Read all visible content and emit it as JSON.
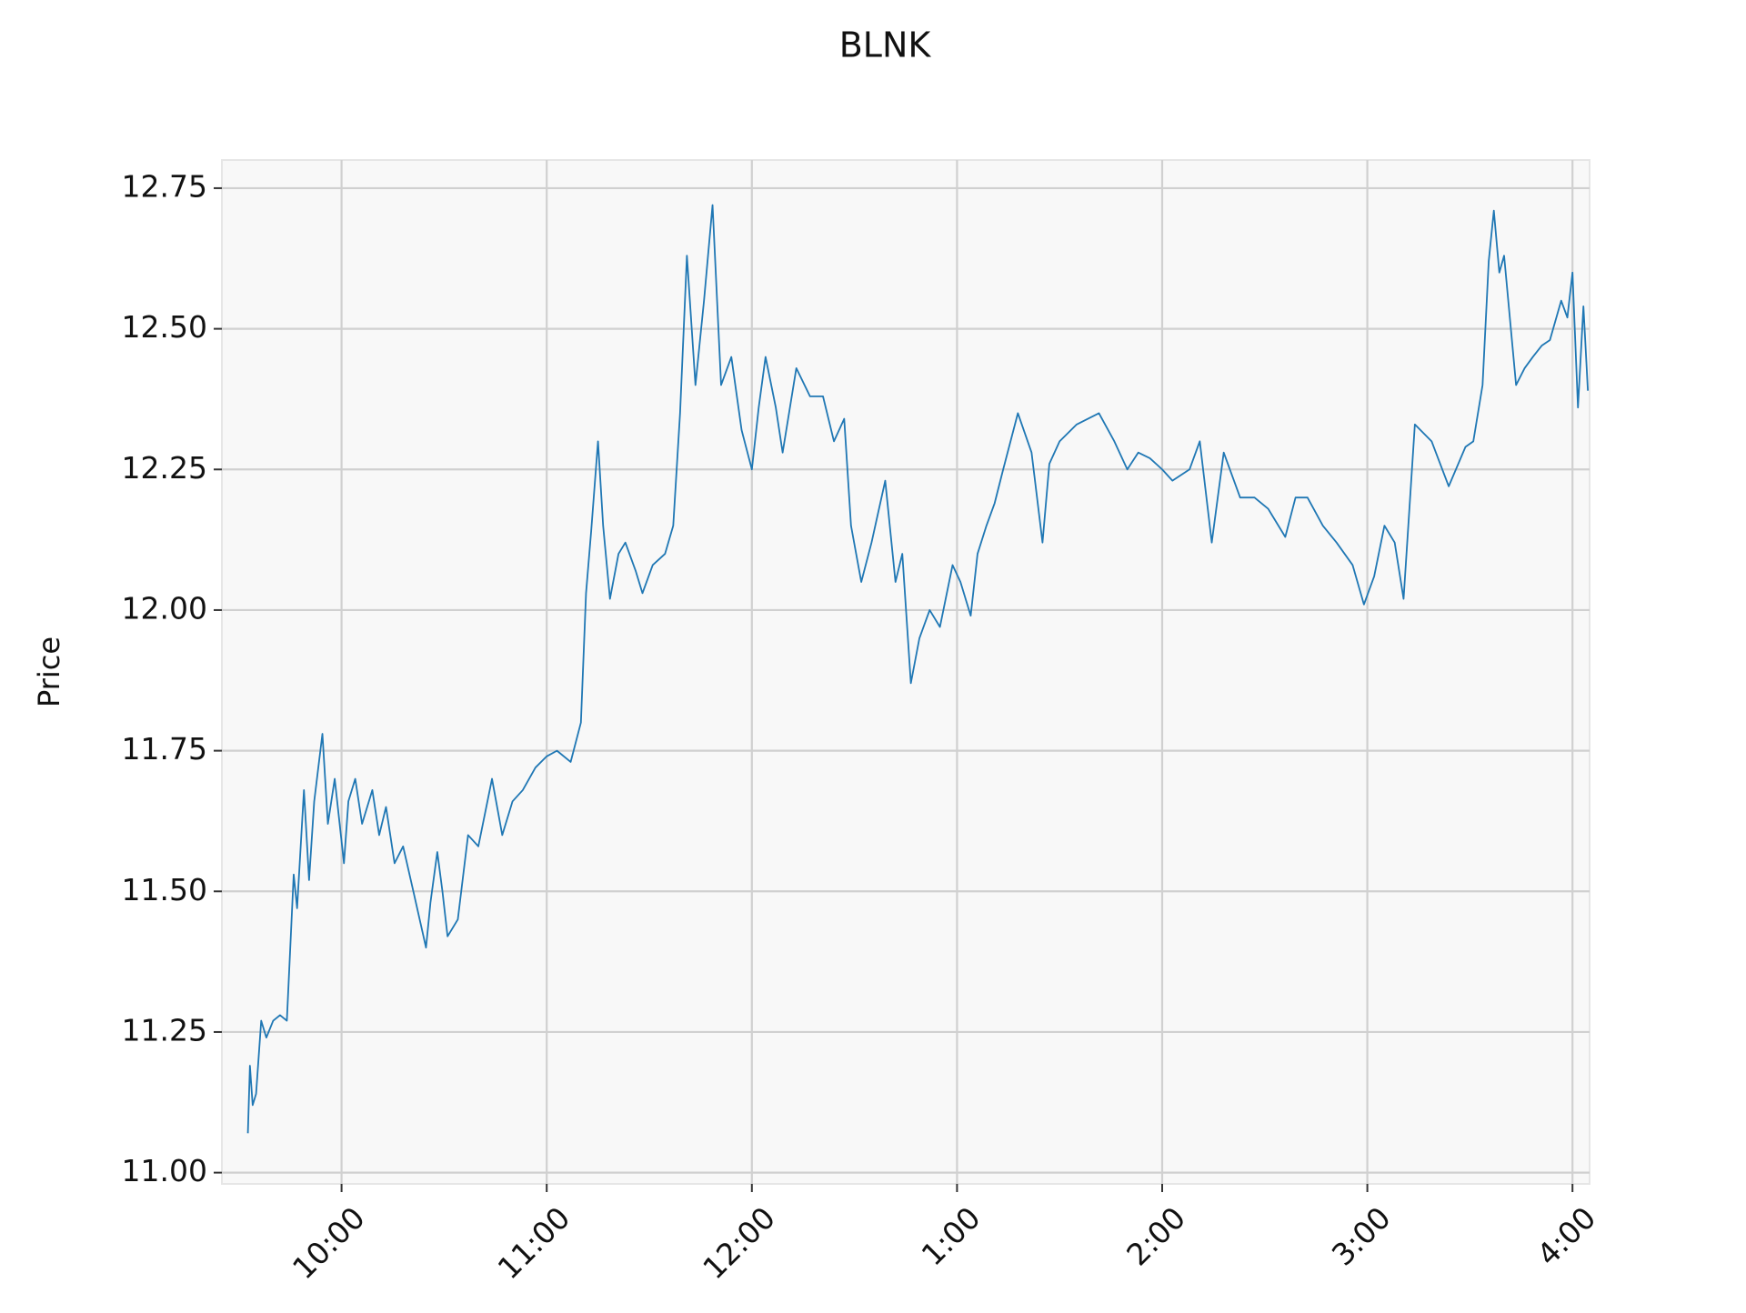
{
  "chart_data": {
    "type": "line",
    "title": "BLNK",
    "ylabel": "Price",
    "color": "#1f77b4",
    "grid": true,
    "x": [
      572.6,
      573.2,
      574,
      575,
      576.5,
      578,
      580,
      582,
      584,
      586,
      587,
      589,
      590.5,
      592,
      594.4,
      596,
      598,
      600.7,
      602,
      604,
      606,
      609,
      611,
      613,
      615.5,
      618,
      621,
      624.7,
      626,
      628,
      629.5,
      631,
      634,
      637,
      640,
      644,
      647,
      650,
      653,
      656.7,
      660,
      663,
      667,
      670,
      671.5,
      673,
      675,
      676.5,
      678.5,
      681,
      683,
      686,
      688,
      691,
      694.6,
      697,
      699,
      701,
      703.5,
      706,
      708.5,
      711,
      714,
      717,
      720,
      722,
      724,
      727,
      729,
      733,
      737,
      740.8,
      744,
      747,
      749,
      752,
      755,
      759,
      762,
      764,
      766.5,
      769,
      772,
      775,
      778.7,
      781,
      784,
      786,
      788.6,
      791,
      793.5,
      797.8,
      801.8,
      805,
      807,
      810,
      815,
      821.5,
      826,
      829.8,
      833,
      836.4,
      840,
      843,
      848,
      851,
      854.5,
      858,
      862.8,
      867,
      871,
      876,
      879,
      882.5,
      887,
      891,
      895.7,
      899,
      902,
      905,
      908,
      910.6,
      913.9,
      918.8,
      923.8,
      928.7,
      931,
      933.7,
      935.5,
      937,
      938.6,
      940,
      943.5,
      946,
      948.4,
      951,
      953.4,
      956.7,
      958.5,
      960,
      961.6,
      963.2,
      964.5
    ],
    "values": [
      11.07,
      11.19,
      11.12,
      11.14,
      11.27,
      11.24,
      11.27,
      11.28,
      11.27,
      11.53,
      11.47,
      11.68,
      11.52,
      11.66,
      11.78,
      11.62,
      11.7,
      11.55,
      11.66,
      11.7,
      11.62,
      11.68,
      11.6,
      11.65,
      11.55,
      11.58,
      11.5,
      11.4,
      11.48,
      11.57,
      11.5,
      11.42,
      11.45,
      11.6,
      11.58,
      11.7,
      11.6,
      11.66,
      11.68,
      11.72,
      11.74,
      11.75,
      11.73,
      11.8,
      12.03,
      12.14,
      12.3,
      12.15,
      12.02,
      12.1,
      12.12,
      12.07,
      12.03,
      12.08,
      12.1,
      12.15,
      12.35,
      12.63,
      12.4,
      12.55,
      12.72,
      12.4,
      12.45,
      12.32,
      12.25,
      12.36,
      12.45,
      12.36,
      12.28,
      12.43,
      12.38,
      12.38,
      12.3,
      12.34,
      12.15,
      12.05,
      12.12,
      12.23,
      12.05,
      12.1,
      11.87,
      11.95,
      12.0,
      11.97,
      12.08,
      12.05,
      11.99,
      12.1,
      12.15,
      12.19,
      12.25,
      12.35,
      12.28,
      12.12,
      12.26,
      12.3,
      12.33,
      12.35,
      12.3,
      12.25,
      12.28,
      12.27,
      12.25,
      12.23,
      12.25,
      12.3,
      12.12,
      12.28,
      12.2,
      12.2,
      12.18,
      12.13,
      12.2,
      12.2,
      12.15,
      12.12,
      12.08,
      12.01,
      12.06,
      12.15,
      12.12,
      12.02,
      12.33,
      12.3,
      12.22,
      12.29,
      12.3,
      12.4,
      12.62,
      12.71,
      12.6,
      12.63,
      12.4,
      12.43,
      12.45,
      12.47,
      12.48,
      12.55,
      12.52,
      12.6,
      12.36,
      12.54,
      12.39
    ],
    "xlim": [
      565,
      965
    ],
    "ylim": [
      10.98,
      12.8
    ],
    "xticks": [
      {
        "value": 600,
        "label": "10:00"
      },
      {
        "value": 660,
        "label": "11:00"
      },
      {
        "value": 720,
        "label": "12:00"
      },
      {
        "value": 780,
        "label": "1:00"
      },
      {
        "value": 840,
        "label": "2:00"
      },
      {
        "value": 900,
        "label": "3:00"
      },
      {
        "value": 960,
        "label": "4:00"
      }
    ],
    "yticks": [
      {
        "value": 11,
        "label": "11.00"
      },
      11.25,
      {
        "value": 11.5,
        "label": "11.50"
      },
      11.75,
      {
        "value": 12,
        "label": "12.00"
      },
      12.25,
      {
        "value": 12.5,
        "label": "12.50"
      },
      12.75
    ]
  }
}
